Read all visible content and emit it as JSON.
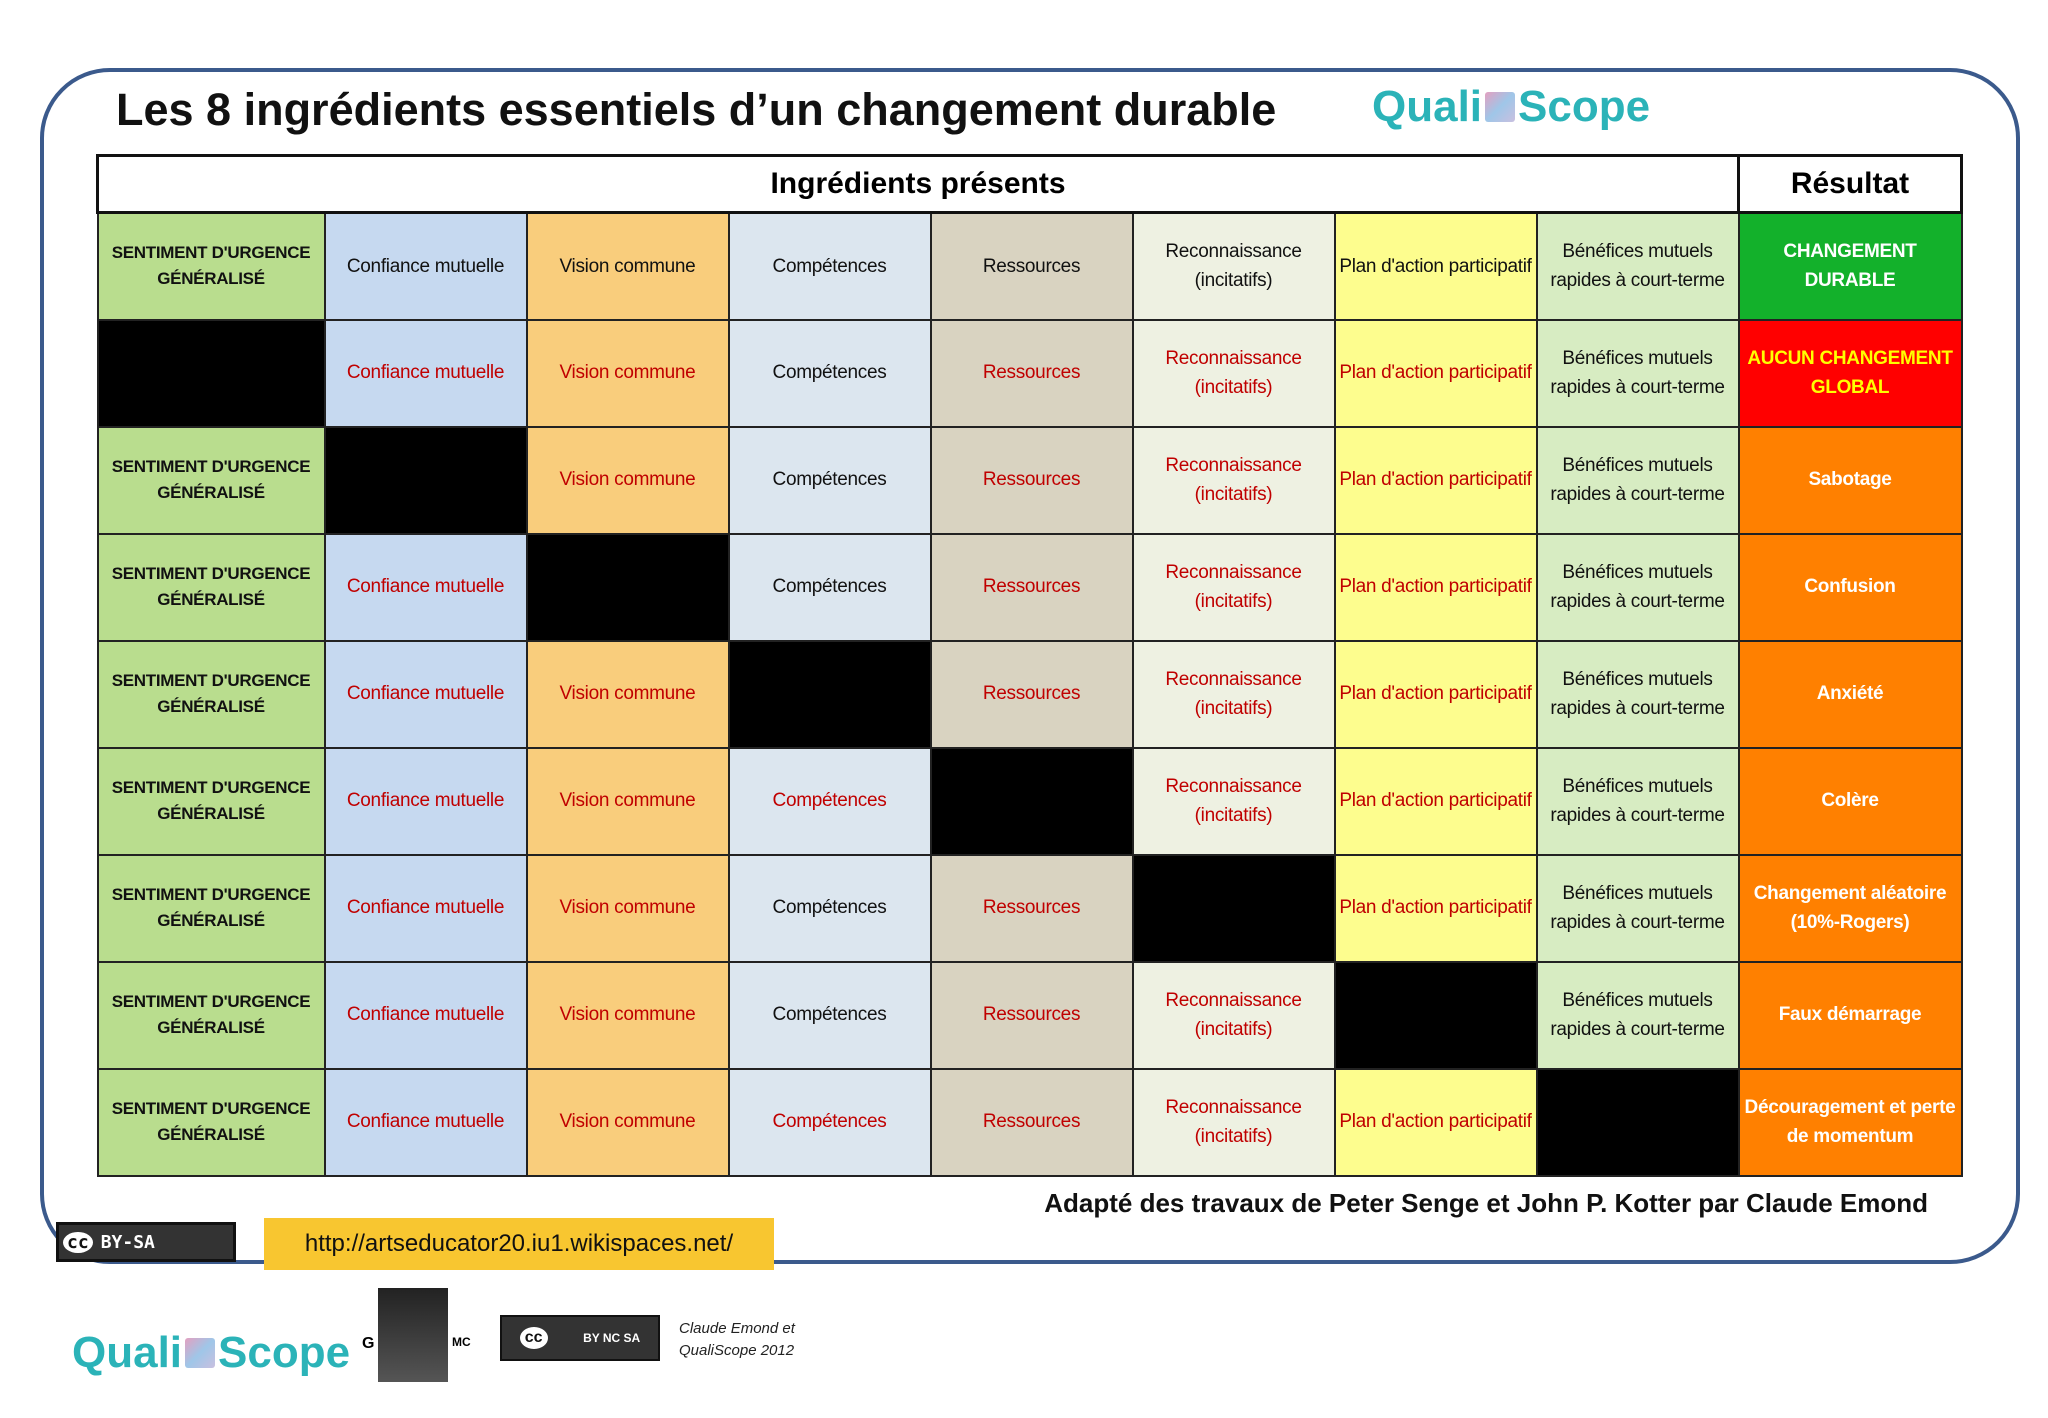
{
  "title": "Les 8 ingrédients essentiels d’un changement durable",
  "logo": {
    "left": "Quali",
    "right": "Scope"
  },
  "table": {
    "header": {
      "ingredients": "Ingrédients présents",
      "result": "Résultat"
    },
    "column_colors": [
      "#b9dd8e",
      "#c6d9f0",
      "#f9cd7c",
      "#dce6ef",
      "#d9d3c1",
      "#eef1e2",
      "#fdfd8e",
      "#d7ecc2"
    ],
    "rows": [
      {
        "cells": [
          "SENTIMENT D'URGENCE GÉNÉRALISÉ",
          "Confiance mutuelle",
          "Vision commune",
          "Compétences",
          "Ressources",
          "Reconnaissance (incitatifs)",
          "Plan d'action participatif",
          "Bénéfices mutuels rapides à court-terme"
        ],
        "colors": [
          "#111",
          "#111",
          "#111",
          "#111",
          "#111",
          "#111",
          "#111",
          "#111"
        ],
        "result": "CHANGEMENT DURABLE",
        "result_color": "#13b12b",
        "result_text_color": "#ffffff"
      },
      {
        "cells": [
          null,
          "Confiance mutuelle",
          "Vision commune",
          "Compétences",
          "Ressources",
          "Reconnaissance (incitatifs)",
          "Plan d'action participatif",
          "Bénéfices mutuels rapides à court-terme"
        ],
        "colors": [
          "#111",
          "#c00000",
          "#c00000",
          "#111",
          "#c00000",
          "#c00000",
          "#c00000",
          "#111"
        ],
        "result": "AUCUN CHANGEMENT GLOBAL",
        "result_color": "#ff0000",
        "result_text_color": "#ffff00"
      },
      {
        "cells": [
          "SENTIMENT D'URGENCE GÉNÉRALISÉ",
          null,
          "Vision commune",
          "Compétences",
          "Ressources",
          "Reconnaissance (incitatifs)",
          "Plan d'action participatif",
          "Bénéfices mutuels rapides à court-terme"
        ],
        "colors": [
          "#111",
          "#111",
          "#c00000",
          "#111",
          "#c00000",
          "#c00000",
          "#c00000",
          "#111"
        ],
        "result": "Sabotage",
        "result_color": "#ff8000",
        "result_text_color": "#ffffff"
      },
      {
        "cells": [
          "SENTIMENT D'URGENCE GÉNÉRALISÉ",
          "Confiance mutuelle",
          null,
          "Compétences",
          "Ressources",
          "Reconnaissance (incitatifs)",
          "Plan d'action participatif",
          "Bénéfices mutuels rapides à court-terme"
        ],
        "colors": [
          "#111",
          "#c00000",
          "#111",
          "#111",
          "#c00000",
          "#c00000",
          "#c00000",
          "#111"
        ],
        "result": "Confusion",
        "result_color": "#ff8000",
        "result_text_color": "#ffffff"
      },
      {
        "cells": [
          "SENTIMENT D'URGENCE GÉNÉRALISÉ",
          "Confiance mutuelle",
          "Vision commune",
          null,
          "Ressources",
          "Reconnaissance (incitatifs)",
          "Plan d'action participatif",
          "Bénéfices mutuels rapides à court-terme"
        ],
        "colors": [
          "#111",
          "#c00000",
          "#c00000",
          "#111",
          "#c00000",
          "#c00000",
          "#c00000",
          "#111"
        ],
        "result": "Anxiété",
        "result_color": "#ff8000",
        "result_text_color": "#ffffff"
      },
      {
        "cells": [
          "SENTIMENT D'URGENCE GÉNÉRALISÉ",
          "Confiance mutuelle",
          "Vision commune",
          "Compétences",
          null,
          "Reconnaissance (incitatifs)",
          "Plan d'action participatif",
          "Bénéfices mutuels rapides à court-terme"
        ],
        "colors": [
          "#111",
          "#c00000",
          "#c00000",
          "#c00000",
          "#111",
          "#c00000",
          "#c00000",
          "#111"
        ],
        "result": "Colère",
        "result_color": "#ff8000",
        "result_text_color": "#ffffff"
      },
      {
        "cells": [
          "SENTIMENT D'URGENCE GÉNÉRALISÉ",
          "Confiance mutuelle",
          "Vision commune",
          "Compétences",
          "Ressources",
          null,
          "Plan d'action participatif",
          "Bénéfices mutuels rapides à court-terme"
        ],
        "colors": [
          "#111",
          "#c00000",
          "#c00000",
          "#111",
          "#c00000",
          "#111",
          "#c00000",
          "#111"
        ],
        "result": "Changement aléatoire (10%-Rogers)",
        "result_color": "#ff8000",
        "result_text_color": "#ffffff"
      },
      {
        "cells": [
          "SENTIMENT D'URGENCE GÉNÉRALISÉ",
          "Confiance mutuelle",
          "Vision commune",
          "Compétences",
          "Ressources",
          "Reconnaissance (incitatifs)",
          null,
          "Bénéfices mutuels rapides à court-terme"
        ],
        "colors": [
          "#111",
          "#c00000",
          "#c00000",
          "#111",
          "#c00000",
          "#c00000",
          "#111",
          "#111"
        ],
        "result": "Faux démarrage",
        "result_color": "#ff8000",
        "result_text_color": "#ffffff"
      },
      {
        "cells": [
          "SENTIMENT D'URGENCE GÉNÉRALISÉ",
          "Confiance mutuelle",
          "Vision commune",
          "Compétences",
          "Ressources",
          "Reconnaissance (incitatifs)",
          "Plan d'action participatif",
          null
        ],
        "colors": [
          "#111",
          "#c00000",
          "#c00000",
          "#c00000",
          "#c00000",
          "#c00000",
          "#c00000",
          "#111"
        ],
        "result": "Découragement et perte de momentum",
        "result_color": "#ff8000",
        "result_text_color": "#ffffff"
      }
    ]
  },
  "credit": "Adapté des travaux de Peter Senge et John P. Kotter par Claude Emond",
  "license_badge": {
    "cc": "cc",
    "text": "BY-SA"
  },
  "link": "http://artseducator20.iu1.wikispaces.net/",
  "footer_logo": {
    "left": "Quali",
    "right": "Scope"
  },
  "gmc": {
    "left": "G",
    "right": "MC"
  },
  "cc_badge": {
    "cc": "cc",
    "text": "BY NC SA"
  },
  "copyright": {
    "line1": "Claude Emond et",
    "line2": "QualiScope 2012"
  }
}
